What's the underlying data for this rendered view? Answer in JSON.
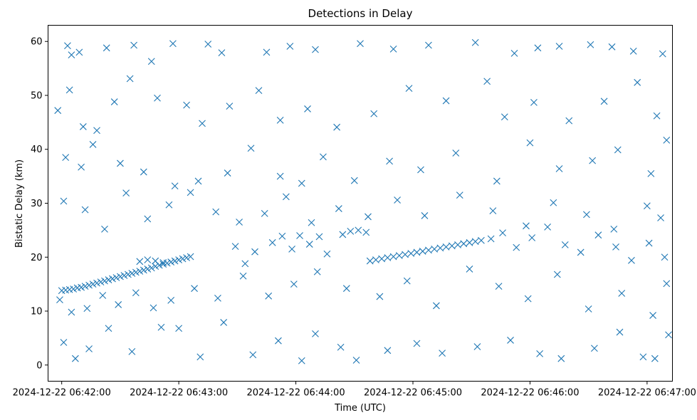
{
  "chart_data": {
    "type": "scatter",
    "title": "Detections in Delay",
    "xlabel": "Time (UTC)",
    "ylabel": "Bistatic Delay (km)",
    "x_start": "2024-12-22 06:41:53",
    "x_end": "2024-12-22 06:47:13",
    "xlim": [
      "2024-12-22 06:41:53",
      "2024-12-22 06:47:13"
    ],
    "ylim": [
      -3,
      63
    ],
    "x_ticks": [
      {
        "time": "2024-12-22 06:42:00",
        "label": "2024-12-22 06:42:00"
      },
      {
        "time": "2024-12-22 06:43:00",
        "label": "2024-12-22 06:43:00"
      },
      {
        "time": "2024-12-22 06:44:00",
        "label": "2024-12-22 06:44:00"
      },
      {
        "time": "2024-12-22 06:45:00",
        "label": "2024-12-22 06:45:00"
      },
      {
        "time": "2024-12-22 06:46:00",
        "label": "2024-12-22 06:46:00"
      },
      {
        "time": "2024-12-22 06:47:00",
        "label": "2024-12-22 06:47:00"
      }
    ],
    "y_ticks": [
      0,
      10,
      20,
      30,
      40,
      50,
      60
    ],
    "marker": "x",
    "grid": false,
    "legend": "none",
    "series": [
      {
        "color": "#1f77b4",
        "points": [
          [
            "2024-12-22 06:42:00",
            13.8
          ],
          [
            "2024-12-22 06:42:02",
            13.9
          ],
          [
            "2024-12-22 06:42:04",
            14.0
          ],
          [
            "2024-12-22 06:42:06",
            14.1
          ],
          [
            "2024-12-22 06:42:08",
            14.3
          ],
          [
            "2024-12-22 06:42:10",
            14.4
          ],
          [
            "2024-12-22 06:42:12",
            14.6
          ],
          [
            "2024-12-22 06:42:14",
            14.8
          ],
          [
            "2024-12-22 06:42:16",
            15.0
          ],
          [
            "2024-12-22 06:42:18",
            15.2
          ],
          [
            "2024-12-22 06:42:20",
            15.4
          ],
          [
            "2024-12-22 06:42:22",
            15.6
          ],
          [
            "2024-12-22 06:42:24",
            15.8
          ],
          [
            "2024-12-22 06:42:26",
            16.0
          ],
          [
            "2024-12-22 06:42:28",
            16.2
          ],
          [
            "2024-12-22 06:42:30",
            16.4
          ],
          [
            "2024-12-22 06:42:32",
            16.6
          ],
          [
            "2024-12-22 06:42:34",
            16.8
          ],
          [
            "2024-12-22 06:42:36",
            17.0
          ],
          [
            "2024-12-22 06:42:38",
            17.2
          ],
          [
            "2024-12-22 06:42:40",
            17.4
          ],
          [
            "2024-12-22 06:42:42",
            17.6
          ],
          [
            "2024-12-22 06:42:44",
            17.8
          ],
          [
            "2024-12-22 06:42:46",
            18.0
          ],
          [
            "2024-12-22 06:42:48",
            18.3
          ],
          [
            "2024-12-22 06:42:50",
            18.5
          ],
          [
            "2024-12-22 06:42:52",
            18.7
          ],
          [
            "2024-12-22 06:42:54",
            18.9
          ],
          [
            "2024-12-22 06:42:56",
            19.1
          ],
          [
            "2024-12-22 06:42:58",
            19.3
          ],
          [
            "2024-12-22 06:43:00",
            19.5
          ],
          [
            "2024-12-22 06:43:02",
            19.7
          ],
          [
            "2024-12-22 06:43:04",
            19.9
          ],
          [
            "2024-12-22 06:43:06",
            20.1
          ],
          [
            "2024-12-22 06:42:44",
            19.5
          ],
          [
            "2024-12-22 06:42:48",
            19.3
          ],
          [
            "2024-12-22 06:42:52",
            19.0
          ],
          [
            "2024-12-22 06:42:40",
            19.2
          ],
          [
            "2024-12-22 06:44:24",
            24.2
          ],
          [
            "2024-12-22 06:44:28",
            24.8
          ],
          [
            "2024-12-22 06:44:32",
            25.0
          ],
          [
            "2024-12-22 06:44:36",
            24.6
          ],
          [
            "2024-12-22 06:44:38",
            19.3
          ],
          [
            "2024-12-22 06:44:41",
            19.5
          ],
          [
            "2024-12-22 06:44:44",
            19.7
          ],
          [
            "2024-12-22 06:44:47",
            19.9
          ],
          [
            "2024-12-22 06:44:50",
            20.1
          ],
          [
            "2024-12-22 06:44:53",
            20.3
          ],
          [
            "2024-12-22 06:44:56",
            20.5
          ],
          [
            "2024-12-22 06:44:59",
            20.7
          ],
          [
            "2024-12-22 06:45:02",
            20.9
          ],
          [
            "2024-12-22 06:45:05",
            21.1
          ],
          [
            "2024-12-22 06:45:08",
            21.3
          ],
          [
            "2024-12-22 06:45:11",
            21.5
          ],
          [
            "2024-12-22 06:45:14",
            21.7
          ],
          [
            "2024-12-22 06:45:17",
            21.9
          ],
          [
            "2024-12-22 06:45:20",
            22.1
          ],
          [
            "2024-12-22 06:45:23",
            22.3
          ],
          [
            "2024-12-22 06:45:26",
            22.5
          ],
          [
            "2024-12-22 06:45:29",
            22.7
          ],
          [
            "2024-12-22 06:45:32",
            22.9
          ],
          [
            "2024-12-22 06:45:35",
            23.1
          ],
          [
            "2024-12-22 06:42:03",
            59.2
          ],
          [
            "2024-12-22 06:42:05",
            57.5
          ],
          [
            "2024-12-22 06:42:09",
            58.0
          ],
          [
            "2024-12-22 06:42:23",
            58.8
          ],
          [
            "2024-12-22 06:42:37",
            59.3
          ],
          [
            "2024-12-22 06:42:46",
            56.3
          ],
          [
            "2024-12-22 06:42:57",
            59.6
          ],
          [
            "2024-12-22 06:43:15",
            59.5
          ],
          [
            "2024-12-22 06:43:22",
            57.9
          ],
          [
            "2024-12-22 06:43:45",
            58.0
          ],
          [
            "2024-12-22 06:43:57",
            59.1
          ],
          [
            "2024-12-22 06:44:10",
            58.5
          ],
          [
            "2024-12-22 06:44:33",
            59.6
          ],
          [
            "2024-12-22 06:44:50",
            58.6
          ],
          [
            "2024-12-22 06:45:08",
            59.3
          ],
          [
            "2024-12-22 06:45:32",
            59.8
          ],
          [
            "2024-12-22 06:45:52",
            57.8
          ],
          [
            "2024-12-22 06:46:04",
            58.8
          ],
          [
            "2024-12-22 06:46:15",
            59.1
          ],
          [
            "2024-12-22 06:46:31",
            59.4
          ],
          [
            "2024-12-22 06:46:42",
            59.0
          ],
          [
            "2024-12-22 06:46:53",
            58.2
          ],
          [
            "2024-12-22 06:47:08",
            57.7
          ],
          [
            "2024-12-22 06:41:58",
            47.2
          ],
          [
            "2024-12-22 06:42:04",
            51.0
          ],
          [
            "2024-12-22 06:42:11",
            44.2
          ],
          [
            "2024-12-22 06:42:18",
            43.5
          ],
          [
            "2024-12-22 06:42:27",
            48.8
          ],
          [
            "2024-12-22 06:42:35",
            53.1
          ],
          [
            "2024-12-22 06:42:49",
            49.5
          ],
          [
            "2024-12-22 06:43:04",
            48.2
          ],
          [
            "2024-12-22 06:43:12",
            44.8
          ],
          [
            "2024-12-22 06:43:26",
            48.0
          ],
          [
            "2024-12-22 06:43:41",
            50.9
          ],
          [
            "2024-12-22 06:43:52",
            45.4
          ],
          [
            "2024-12-22 06:44:06",
            47.5
          ],
          [
            "2024-12-22 06:44:21",
            44.1
          ],
          [
            "2024-12-22 06:44:40",
            46.6
          ],
          [
            "2024-12-22 06:44:58",
            51.3
          ],
          [
            "2024-12-22 06:45:17",
            49.0
          ],
          [
            "2024-12-22 06:45:38",
            52.6
          ],
          [
            "2024-12-22 06:45:47",
            46.0
          ],
          [
            "2024-12-22 06:46:02",
            48.7
          ],
          [
            "2024-12-22 06:46:20",
            45.3
          ],
          [
            "2024-12-22 06:46:38",
            48.9
          ],
          [
            "2024-12-22 06:46:55",
            52.4
          ],
          [
            "2024-12-22 06:47:05",
            46.2
          ],
          [
            "2024-12-22 06:42:02",
            38.5
          ],
          [
            "2024-12-22 06:42:10",
            36.7
          ],
          [
            "2024-12-22 06:42:16",
            40.9
          ],
          [
            "2024-12-22 06:42:30",
            37.4
          ],
          [
            "2024-12-22 06:42:42",
            35.8
          ],
          [
            "2024-12-22 06:42:58",
            33.2
          ],
          [
            "2024-12-22 06:43:10",
            34.1
          ],
          [
            "2024-12-22 06:43:25",
            35.6
          ],
          [
            "2024-12-22 06:43:37",
            40.2
          ],
          [
            "2024-12-22 06:43:52",
            35.0
          ],
          [
            "2024-12-22 06:44:03",
            33.7
          ],
          [
            "2024-12-22 06:44:14",
            38.6
          ],
          [
            "2024-12-22 06:44:30",
            34.2
          ],
          [
            "2024-12-22 06:44:48",
            37.8
          ],
          [
            "2024-12-22 06:45:04",
            36.2
          ],
          [
            "2024-12-22 06:45:22",
            39.3
          ],
          [
            "2024-12-22 06:45:43",
            34.1
          ],
          [
            "2024-12-22 06:46:00",
            41.2
          ],
          [
            "2024-12-22 06:46:15",
            36.4
          ],
          [
            "2024-12-22 06:46:32",
            37.9
          ],
          [
            "2024-12-22 06:46:45",
            39.9
          ],
          [
            "2024-12-22 06:47:02",
            35.5
          ],
          [
            "2024-12-22 06:47:10",
            41.7
          ],
          [
            "2024-12-22 06:42:01",
            30.4
          ],
          [
            "2024-12-22 06:42:12",
            28.8
          ],
          [
            "2024-12-22 06:42:22",
            25.2
          ],
          [
            "2024-12-22 06:42:33",
            31.9
          ],
          [
            "2024-12-22 06:42:44",
            27.1
          ],
          [
            "2024-12-22 06:42:55",
            29.7
          ],
          [
            "2024-12-22 06:43:06",
            32.0
          ],
          [
            "2024-12-22 06:43:19",
            28.4
          ],
          [
            "2024-12-22 06:43:31",
            26.5
          ],
          [
            "2024-12-22 06:43:44",
            28.1
          ],
          [
            "2024-12-22 06:43:55",
            31.2
          ],
          [
            "2024-12-22 06:44:08",
            26.4
          ],
          [
            "2024-12-22 06:44:22",
            29.0
          ],
          [
            "2024-12-22 06:44:37",
            27.5
          ],
          [
            "2024-12-22 06:44:52",
            30.6
          ],
          [
            "2024-12-22 06:45:06",
            27.7
          ],
          [
            "2024-12-22 06:45:24",
            31.5
          ],
          [
            "2024-12-22 06:45:41",
            28.6
          ],
          [
            "2024-12-22 06:45:58",
            25.8
          ],
          [
            "2024-12-22 06:46:12",
            30.1
          ],
          [
            "2024-12-22 06:46:29",
            27.9
          ],
          [
            "2024-12-22 06:46:43",
            25.2
          ],
          [
            "2024-12-22 06:47:00",
            29.5
          ],
          [
            "2024-12-22 06:47:07",
            27.3
          ],
          [
            "2024-12-22 06:43:48",
            22.7
          ],
          [
            "2024-12-22 06:43:53",
            23.9
          ],
          [
            "2024-12-22 06:43:58",
            21.5
          ],
          [
            "2024-12-22 06:44:02",
            24.0
          ],
          [
            "2024-12-22 06:44:07",
            22.4
          ],
          [
            "2024-12-22 06:44:12",
            23.8
          ],
          [
            "2024-12-22 06:44:16",
            20.6
          ],
          [
            "2024-12-22 06:43:39",
            21.0
          ],
          [
            "2024-12-22 06:43:34",
            18.8
          ],
          [
            "2024-12-22 06:43:29",
            22.0
          ],
          [
            "2024-12-22 06:45:40",
            23.4
          ],
          [
            "2024-12-22 06:45:46",
            24.5
          ],
          [
            "2024-12-22 06:45:53",
            21.8
          ],
          [
            "2024-12-22 06:46:01",
            23.6
          ],
          [
            "2024-12-22 06:46:09",
            25.6
          ],
          [
            "2024-12-22 06:46:18",
            22.3
          ],
          [
            "2024-12-22 06:46:26",
            20.9
          ],
          [
            "2024-12-22 06:46:35",
            24.1
          ],
          [
            "2024-12-22 06:46:44",
            21.9
          ],
          [
            "2024-12-22 06:46:52",
            19.4
          ],
          [
            "2024-12-22 06:47:01",
            22.6
          ],
          [
            "2024-12-22 06:47:09",
            20.0
          ],
          [
            "2024-12-22 06:41:59",
            12.1
          ],
          [
            "2024-12-22 06:42:05",
            9.8
          ],
          [
            "2024-12-22 06:42:13",
            10.5
          ],
          [
            "2024-12-22 06:42:21",
            12.9
          ],
          [
            "2024-12-22 06:42:29",
            11.2
          ],
          [
            "2024-12-22 06:42:38",
            13.4
          ],
          [
            "2024-12-22 06:42:47",
            10.6
          ],
          [
            "2024-12-22 06:42:56",
            12.0
          ],
          [
            "2024-12-22 06:43:08",
            14.2
          ],
          [
            "2024-12-22 06:43:20",
            12.4
          ],
          [
            "2024-12-22 06:43:33",
            16.5
          ],
          [
            "2024-12-22 06:43:46",
            12.8
          ],
          [
            "2024-12-22 06:43:59",
            15.0
          ],
          [
            "2024-12-22 06:44:11",
            17.3
          ],
          [
            "2024-12-22 06:44:26",
            14.2
          ],
          [
            "2024-12-22 06:44:43",
            12.7
          ],
          [
            "2024-12-22 06:44:57",
            15.6
          ],
          [
            "2024-12-22 06:45:12",
            11.0
          ],
          [
            "2024-12-22 06:45:29",
            17.8
          ],
          [
            "2024-12-22 06:45:44",
            14.6
          ],
          [
            "2024-12-22 06:45:59",
            12.3
          ],
          [
            "2024-12-22 06:46:14",
            16.8
          ],
          [
            "2024-12-22 06:46:30",
            10.4
          ],
          [
            "2024-12-22 06:46:47",
            13.3
          ],
          [
            "2024-12-22 06:47:03",
            9.2
          ],
          [
            "2024-12-22 06:47:10",
            15.1
          ],
          [
            "2024-12-22 06:42:01",
            4.2
          ],
          [
            "2024-12-22 06:42:07",
            1.2
          ],
          [
            "2024-12-22 06:42:14",
            3.0
          ],
          [
            "2024-12-22 06:42:24",
            6.8
          ],
          [
            "2024-12-22 06:42:36",
            2.5
          ],
          [
            "2024-12-22 06:42:51",
            7.0
          ],
          [
            "2024-12-22 06:43:00",
            6.8
          ],
          [
            "2024-12-22 06:43:11",
            1.5
          ],
          [
            "2024-12-22 06:43:23",
            7.9
          ],
          [
            "2024-12-22 06:43:38",
            1.9
          ],
          [
            "2024-12-22 06:43:51",
            4.5
          ],
          [
            "2024-12-22 06:44:03",
            0.8
          ],
          [
            "2024-12-22 06:44:10",
            5.8
          ],
          [
            "2024-12-22 06:44:23",
            3.3
          ],
          [
            "2024-12-22 06:44:31",
            0.9
          ],
          [
            "2024-12-22 06:44:47",
            2.7
          ],
          [
            "2024-12-22 06:45:02",
            4.0
          ],
          [
            "2024-12-22 06:45:15",
            2.2
          ],
          [
            "2024-12-22 06:45:33",
            3.4
          ],
          [
            "2024-12-22 06:45:50",
            4.6
          ],
          [
            "2024-12-22 06:46:05",
            2.1
          ],
          [
            "2024-12-22 06:46:16",
            1.2
          ],
          [
            "2024-12-22 06:46:33",
            3.1
          ],
          [
            "2024-12-22 06:46:46",
            6.1
          ],
          [
            "2024-12-22 06:46:58",
            1.5
          ],
          [
            "2024-12-22 06:47:04",
            1.2
          ],
          [
            "2024-12-22 06:47:11",
            5.6
          ]
        ]
      }
    ]
  }
}
